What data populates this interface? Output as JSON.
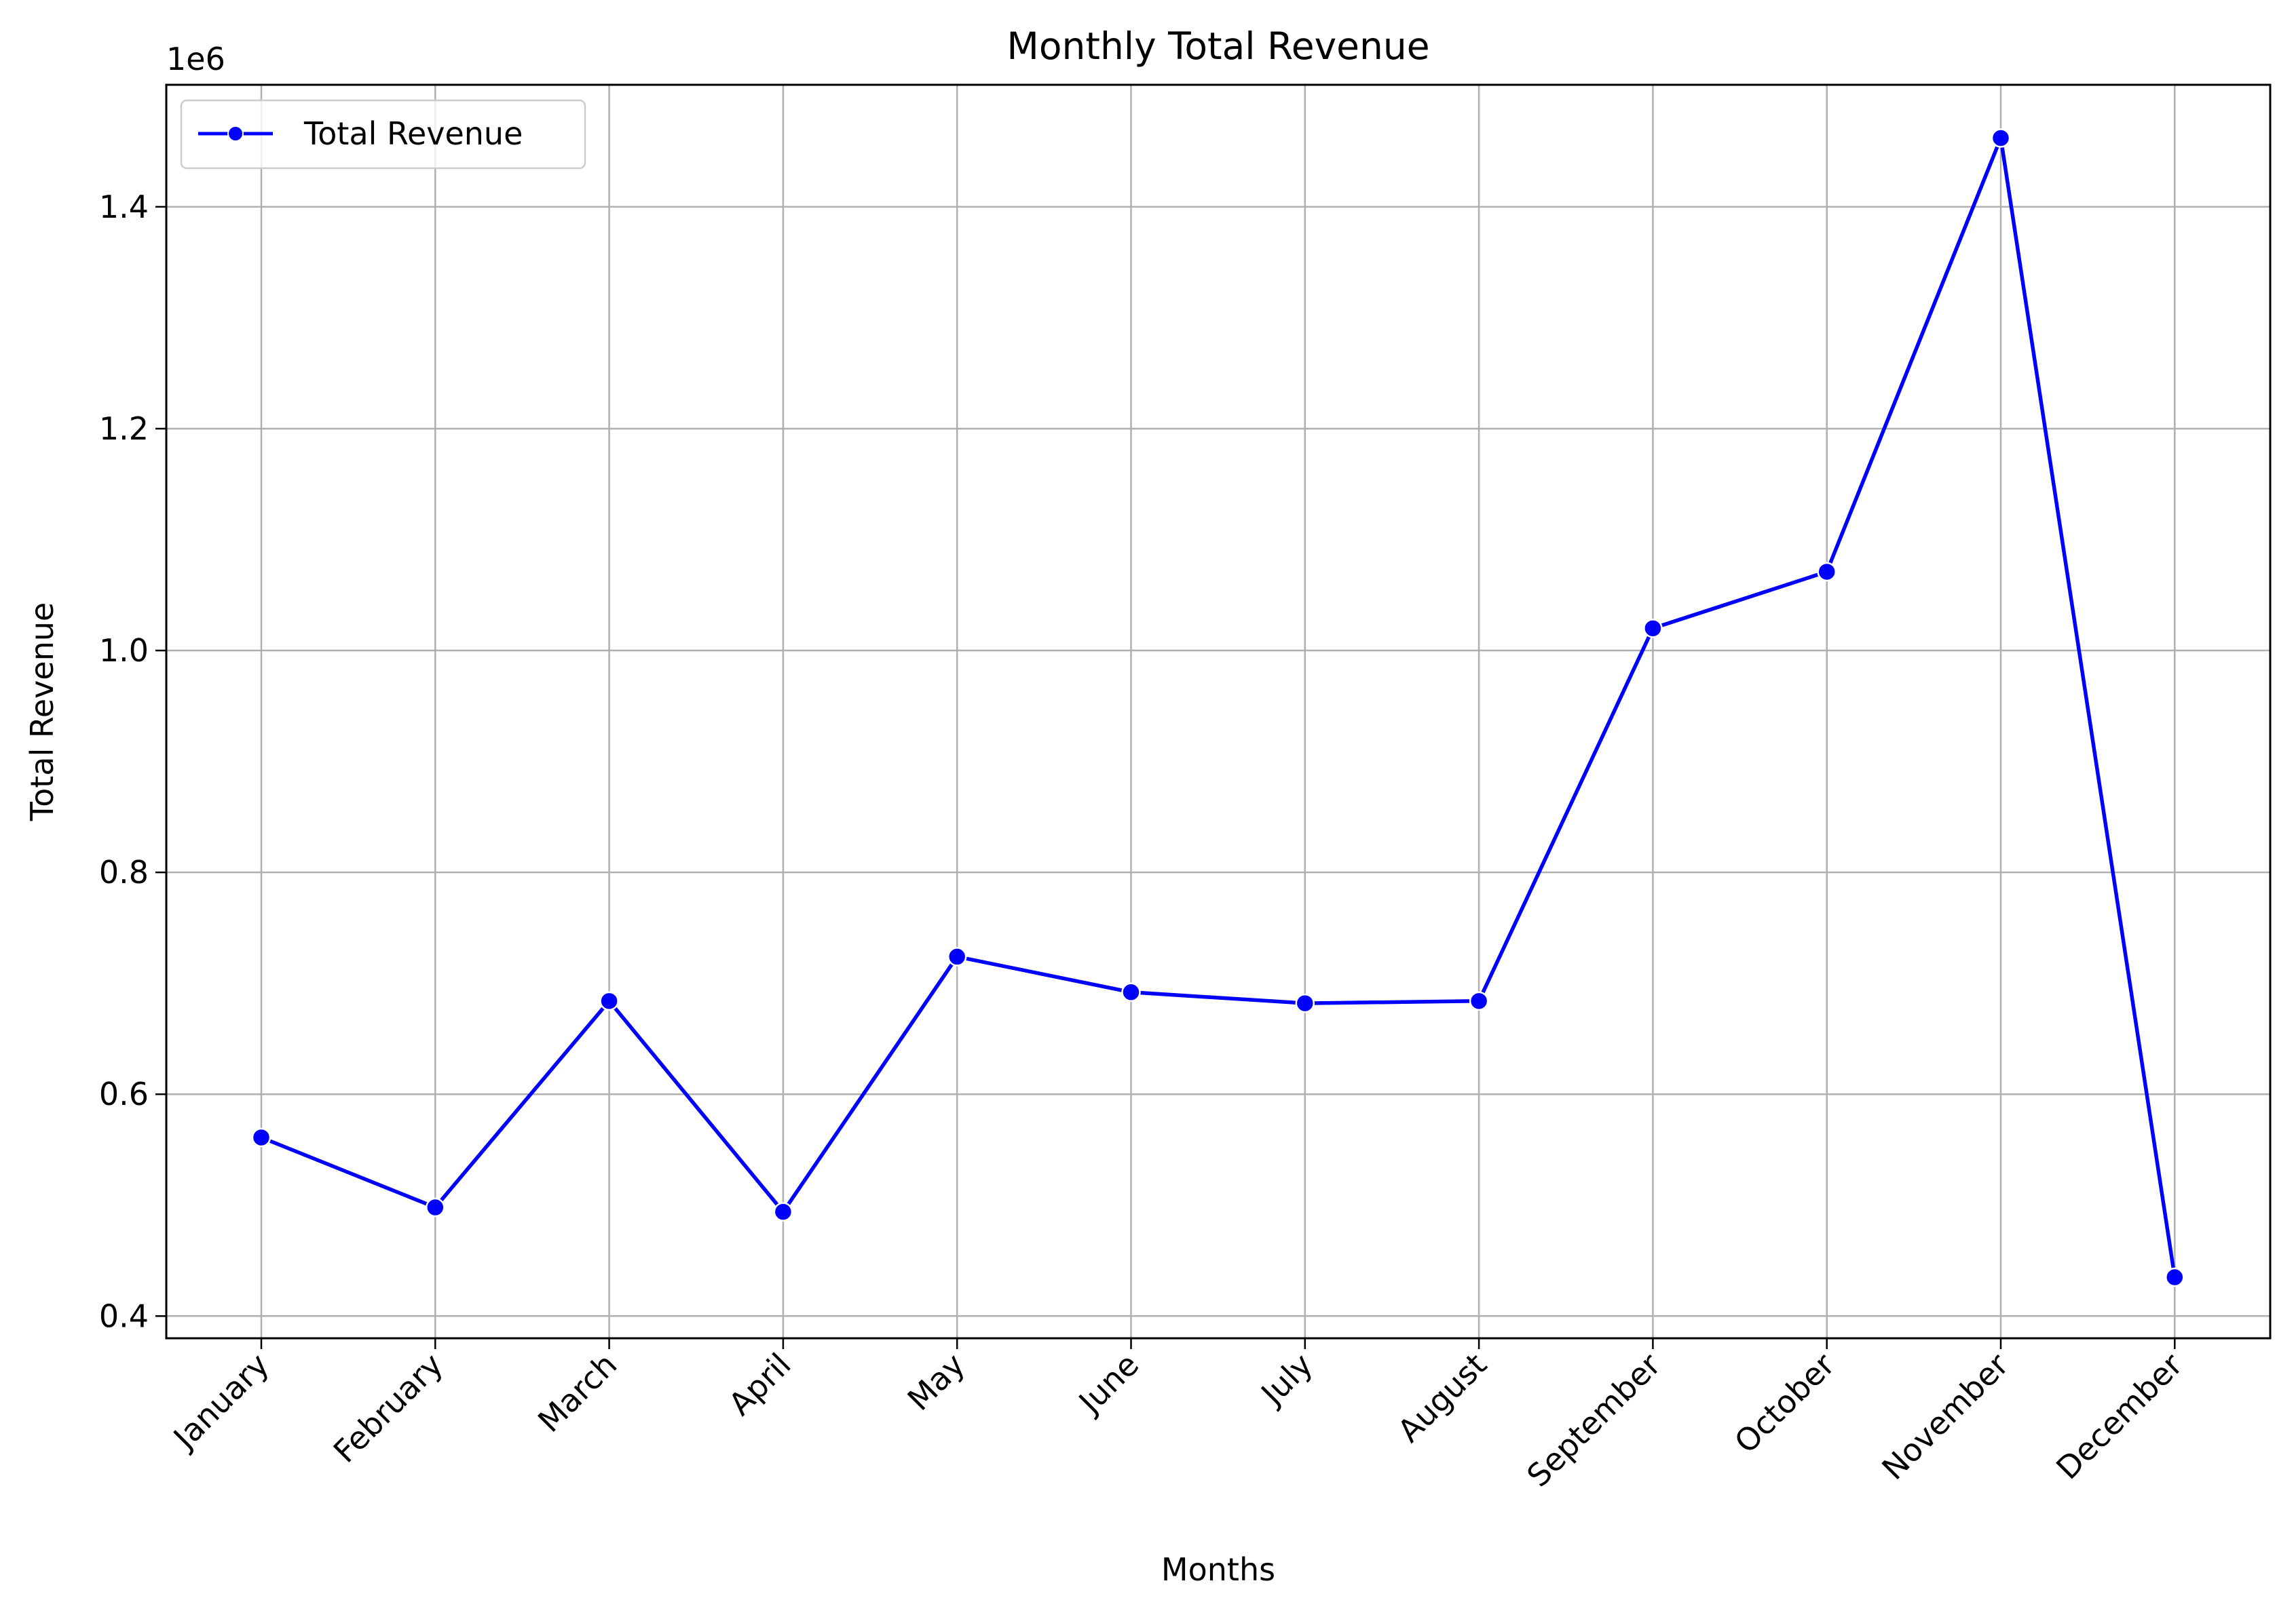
{
  "chart_data": {
    "type": "line",
    "title": "Monthly Total Revenue",
    "xlabel": "Months",
    "ylabel": "Total Revenue",
    "y_offset_text": "1e6",
    "categories": [
      "January",
      "February",
      "March",
      "April",
      "May",
      "June",
      "July",
      "August",
      "September",
      "October",
      "November",
      "December"
    ],
    "series": [
      {
        "name": "Total Revenue",
        "color": "#0000ff",
        "marker": "circle",
        "values": [
          561000,
          498000,
          684000,
          494000,
          724000,
          692000,
          682000,
          684000,
          1020000,
          1071000,
          1462000,
          435000
        ]
      }
    ],
    "ylim": [
      380000,
      1510000
    ],
    "y_ticks": [
      400000,
      600000,
      800000,
      1000000,
      1200000,
      1400000
    ],
    "y_tick_labels": [
      "0.4",
      "0.6",
      "0.8",
      "1.0",
      "1.2",
      "1.4"
    ],
    "grid": true,
    "grid_color": "#b0b0b0",
    "legend_position": "upper-left"
  }
}
